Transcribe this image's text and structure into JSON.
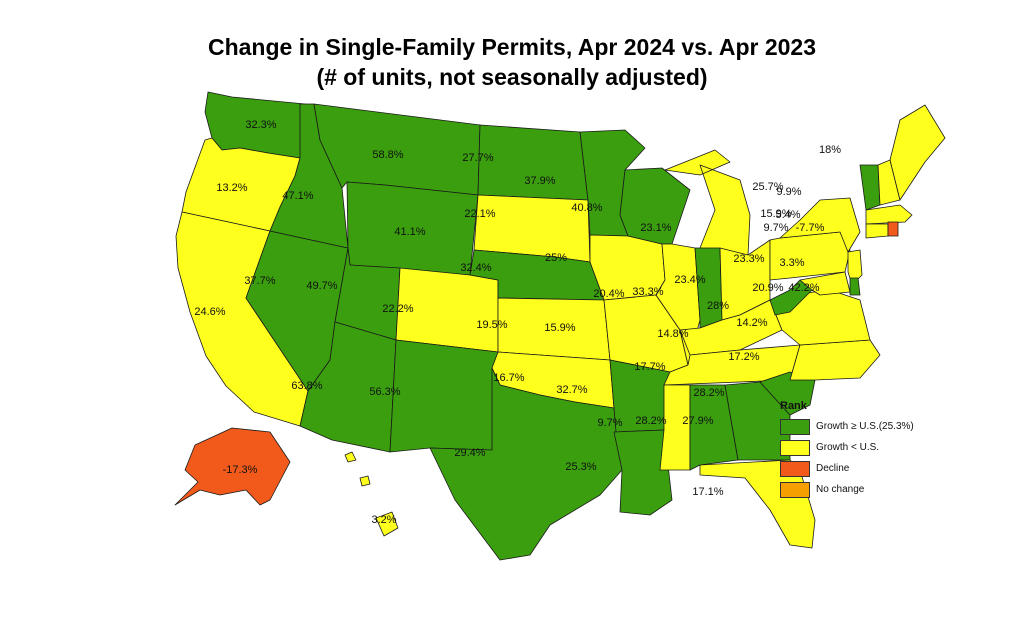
{
  "title_line1": "Change in Single-Family Permits, Apr 2024 vs. Apr 2023",
  "title_line2": "(# of units, not seasonally adjusted)",
  "colors": {
    "growth_ge_us": "#3a9e0e",
    "growth_lt_us": "#ffff1e",
    "decline": "#f25a1c",
    "no_change": "#f5a000"
  },
  "legend": {
    "title": "Rank",
    "items": [
      {
        "key": "growth_ge_us",
        "label": "Growth ≥ U.S.(25.3%)"
      },
      {
        "key": "growth_lt_us",
        "label": "Growth < U.S."
      },
      {
        "key": "decline",
        "label": "Decline"
      },
      {
        "key": "no_change",
        "label": "No change"
      }
    ]
  },
  "states": [
    {
      "abbr": "WA",
      "value": "32.3%",
      "rank": "growth_ge_us"
    },
    {
      "abbr": "OR",
      "value": "13.2%",
      "rank": "growth_lt_us"
    },
    {
      "abbr": "CA",
      "value": "24.6%",
      "rank": "growth_lt_us"
    },
    {
      "abbr": "NV",
      "value": "37.7%",
      "rank": "growth_ge_us"
    },
    {
      "abbr": "ID",
      "value": "47.1%",
      "rank": "growth_ge_us"
    },
    {
      "abbr": "MT",
      "value": "58.8%",
      "rank": "growth_ge_us"
    },
    {
      "abbr": "WY",
      "value": "41.1%",
      "rank": "growth_ge_us"
    },
    {
      "abbr": "UT",
      "value": "49.7%",
      "rank": "growth_ge_us"
    },
    {
      "abbr": "AZ",
      "value": "63.8%",
      "rank": "growth_ge_us"
    },
    {
      "abbr": "CO",
      "value": "22.2%",
      "rank": "growth_lt_us"
    },
    {
      "abbr": "NM",
      "value": "56.3%",
      "rank": "growth_ge_us"
    },
    {
      "abbr": "ND",
      "value": "27.7%",
      "rank": "growth_ge_us"
    },
    {
      "abbr": "SD",
      "value": "22.1%",
      "rank": "growth_lt_us"
    },
    {
      "abbr": "NE",
      "value": "32.4%",
      "rank": "growth_ge_us"
    },
    {
      "abbr": "KS",
      "value": "19.5%",
      "rank": "growth_lt_us"
    },
    {
      "abbr": "OK",
      "value": "16.7%",
      "rank": "growth_lt_us"
    },
    {
      "abbr": "TX",
      "value": "29.4%",
      "rank": "growth_ge_us"
    },
    {
      "abbr": "MN",
      "value": "37.9%",
      "rank": "growth_ge_us"
    },
    {
      "abbr": "IA",
      "value": "25%",
      "rank": "growth_lt_us"
    },
    {
      "abbr": "MO",
      "value": "15.9%",
      "rank": "growth_lt_us"
    },
    {
      "abbr": "AR",
      "value": "32.7%",
      "rank": "growth_ge_us"
    },
    {
      "abbr": "LA",
      "value": "25.3%",
      "rank": "growth_ge_us"
    },
    {
      "abbr": "WI",
      "value": "40.8%",
      "rank": "growth_ge_us"
    },
    {
      "abbr": "IL",
      "value": "20.4%",
      "rank": "growth_lt_us"
    },
    {
      "abbr": "MI",
      "value": "23.1%",
      "rank": "growth_lt_us"
    },
    {
      "abbr": "IN",
      "value": "33.3%",
      "rank": "growth_ge_us"
    },
    {
      "abbr": "OH",
      "value": "23.4%",
      "rank": "growth_lt_us"
    },
    {
      "abbr": "KY",
      "value": "14.8%",
      "rank": "growth_lt_us"
    },
    {
      "abbr": "TN",
      "value": "17.7%",
      "rank": "growth_lt_us"
    },
    {
      "abbr": "MS",
      "value": "9.7%",
      "rank": "growth_lt_us"
    },
    {
      "abbr": "AL",
      "value": "28.2%",
      "rank": "growth_ge_us"
    },
    {
      "abbr": "GA",
      "value": "27.9%",
      "rank": "growth_ge_us"
    },
    {
      "abbr": "FL",
      "value": "17.1%",
      "rank": "growth_lt_us"
    },
    {
      "abbr": "SC",
      "value": "28.2%",
      "rank": "growth_ge_us"
    },
    {
      "abbr": "NC",
      "value": "17.2%",
      "rank": "growth_lt_us"
    },
    {
      "abbr": "VA",
      "value": "14.2%",
      "rank": "growth_lt_us"
    },
    {
      "abbr": "WV",
      "value": "28%",
      "rank": "growth_ge_us"
    },
    {
      "abbr": "PA",
      "value": "23.3%",
      "rank": "growth_lt_us"
    },
    {
      "abbr": "NY",
      "value": "15.9%",
      "rank": "growth_lt_us"
    },
    {
      "abbr": "VT",
      "value": "25.7%",
      "rank": "growth_ge_us"
    },
    {
      "abbr": "NH",
      "value": "9.9%",
      "rank": "growth_lt_us"
    },
    {
      "abbr": "ME",
      "value": "18%",
      "rank": "growth_lt_us"
    },
    {
      "abbr": "MA",
      "value": "5.4%",
      "rank": "growth_lt_us"
    },
    {
      "abbr": "CT",
      "value": "9.7%",
      "rank": "growth_lt_us"
    },
    {
      "abbr": "RI",
      "value": "-7.7%",
      "rank": "decline"
    },
    {
      "abbr": "NJ",
      "value": "3.3%",
      "rank": "growth_lt_us"
    },
    {
      "abbr": "MD",
      "value": "20.9%",
      "rank": "growth_lt_us"
    },
    {
      "abbr": "DE",
      "value": "42.2%",
      "rank": "growth_ge_us"
    },
    {
      "abbr": "AK",
      "value": "-17.3%",
      "rank": "decline"
    },
    {
      "abbr": "HI",
      "value": "3.2%",
      "rank": "growth_lt_us"
    }
  ]
}
